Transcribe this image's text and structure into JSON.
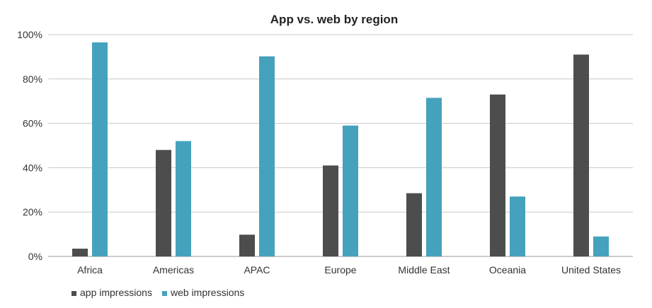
{
  "chart_data": {
    "type": "bar",
    "title": "App vs. web by region",
    "xlabel": "",
    "ylabel": "",
    "categories": [
      "Africa",
      "Americas",
      "APAC",
      "Europe",
      "Middle East",
      "Oceania",
      "United States"
    ],
    "series": [
      {
        "name": "app impressions",
        "color": "#4d4d4d",
        "values": [
          3.5,
          48,
          9.8,
          41,
          28.5,
          73,
          91
        ]
      },
      {
        "name": "web impressions",
        "color": "#45a2bd",
        "values": [
          96.5,
          52,
          90.2,
          59,
          71.5,
          27,
          9
        ]
      }
    ],
    "ylim": [
      0,
      100
    ],
    "yticks": [
      0,
      20,
      40,
      60,
      80,
      100
    ],
    "ytick_labels": [
      "0%",
      "20%",
      "40%",
      "60%",
      "80%",
      "100%"
    ],
    "grid": true,
    "legend_position": "bottom-left"
  }
}
